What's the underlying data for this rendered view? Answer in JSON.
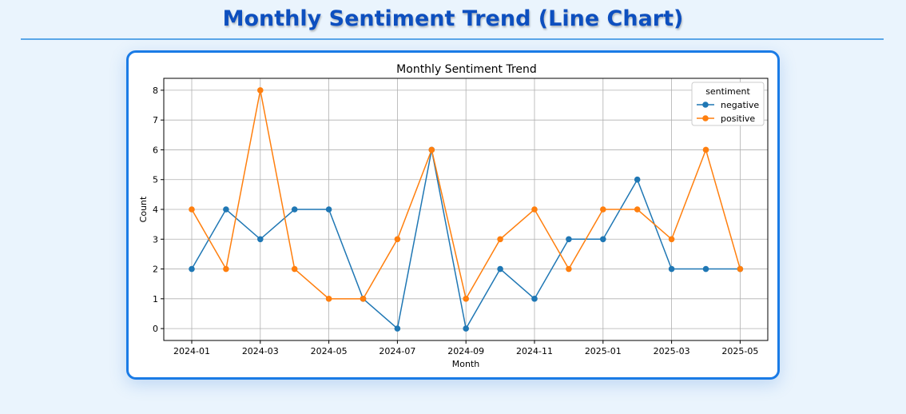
{
  "page": {
    "title": "Monthly Sentiment Trend (Line Chart)"
  },
  "chart_data": {
    "type": "line",
    "title": "Monthly Sentiment Trend",
    "xlabel": "Month",
    "ylabel": "Count",
    "x": [
      "2024-01",
      "2024-02",
      "2024-03",
      "2024-04",
      "2024-05",
      "2024-06",
      "2024-07",
      "2024-08",
      "2024-09",
      "2024-10",
      "2024-11",
      "2024-12",
      "2025-01",
      "2025-02",
      "2025-03",
      "2025-04",
      "2025-05"
    ],
    "xticks": [
      "2024-01",
      "2024-03",
      "2024-05",
      "2024-07",
      "2024-09",
      "2024-11",
      "2025-01",
      "2025-03",
      "2025-05"
    ],
    "yticks": [
      0,
      1,
      2,
      3,
      4,
      5,
      6,
      7,
      8
    ],
    "ylim": [
      -0.4,
      8.4
    ],
    "grid": true,
    "legend": {
      "title": "sentiment",
      "placement": "top-right"
    },
    "series": [
      {
        "name": "negative",
        "color": "#1f77b4",
        "values": [
          2,
          4,
          3,
          4,
          4,
          1,
          0,
          6,
          0,
          2,
          1,
          3,
          3,
          5,
          2,
          2,
          2
        ]
      },
      {
        "name": "positive",
        "color": "#ff7f0e",
        "values": [
          4,
          2,
          8,
          2,
          1,
          1,
          3,
          6,
          1,
          3,
          4,
          2,
          4,
          4,
          3,
          6,
          2
        ]
      }
    ]
  }
}
